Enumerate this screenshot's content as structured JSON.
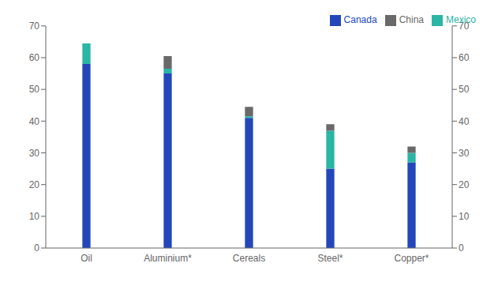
{
  "chart_data": {
    "type": "bar",
    "stacked": true,
    "categories": [
      "Oil",
      "Aluminium*",
      "Cereals",
      "Steel*",
      "Copper*"
    ],
    "series": [
      {
        "name": "Canada",
        "color": "#2347BB",
        "values": [
          58,
          55,
          41,
          25,
          27
        ]
      },
      {
        "name": "Mexico",
        "color": "#2AB5A5",
        "values": [
          6.5,
          1.5,
          0.5,
          12,
          3
        ]
      },
      {
        "name": "China",
        "color": "#696969",
        "values": [
          0,
          4,
          3,
          2,
          2
        ]
      }
    ],
    "ylim": [
      0,
      70
    ],
    "yticks": [
      0,
      10,
      20,
      30,
      40,
      50,
      60,
      70
    ],
    "y2lim": [
      0,
      70
    ],
    "y2ticks": [
      0,
      10,
      20,
      30,
      40,
      50,
      60,
      70
    ],
    "legend": "upper right"
  }
}
